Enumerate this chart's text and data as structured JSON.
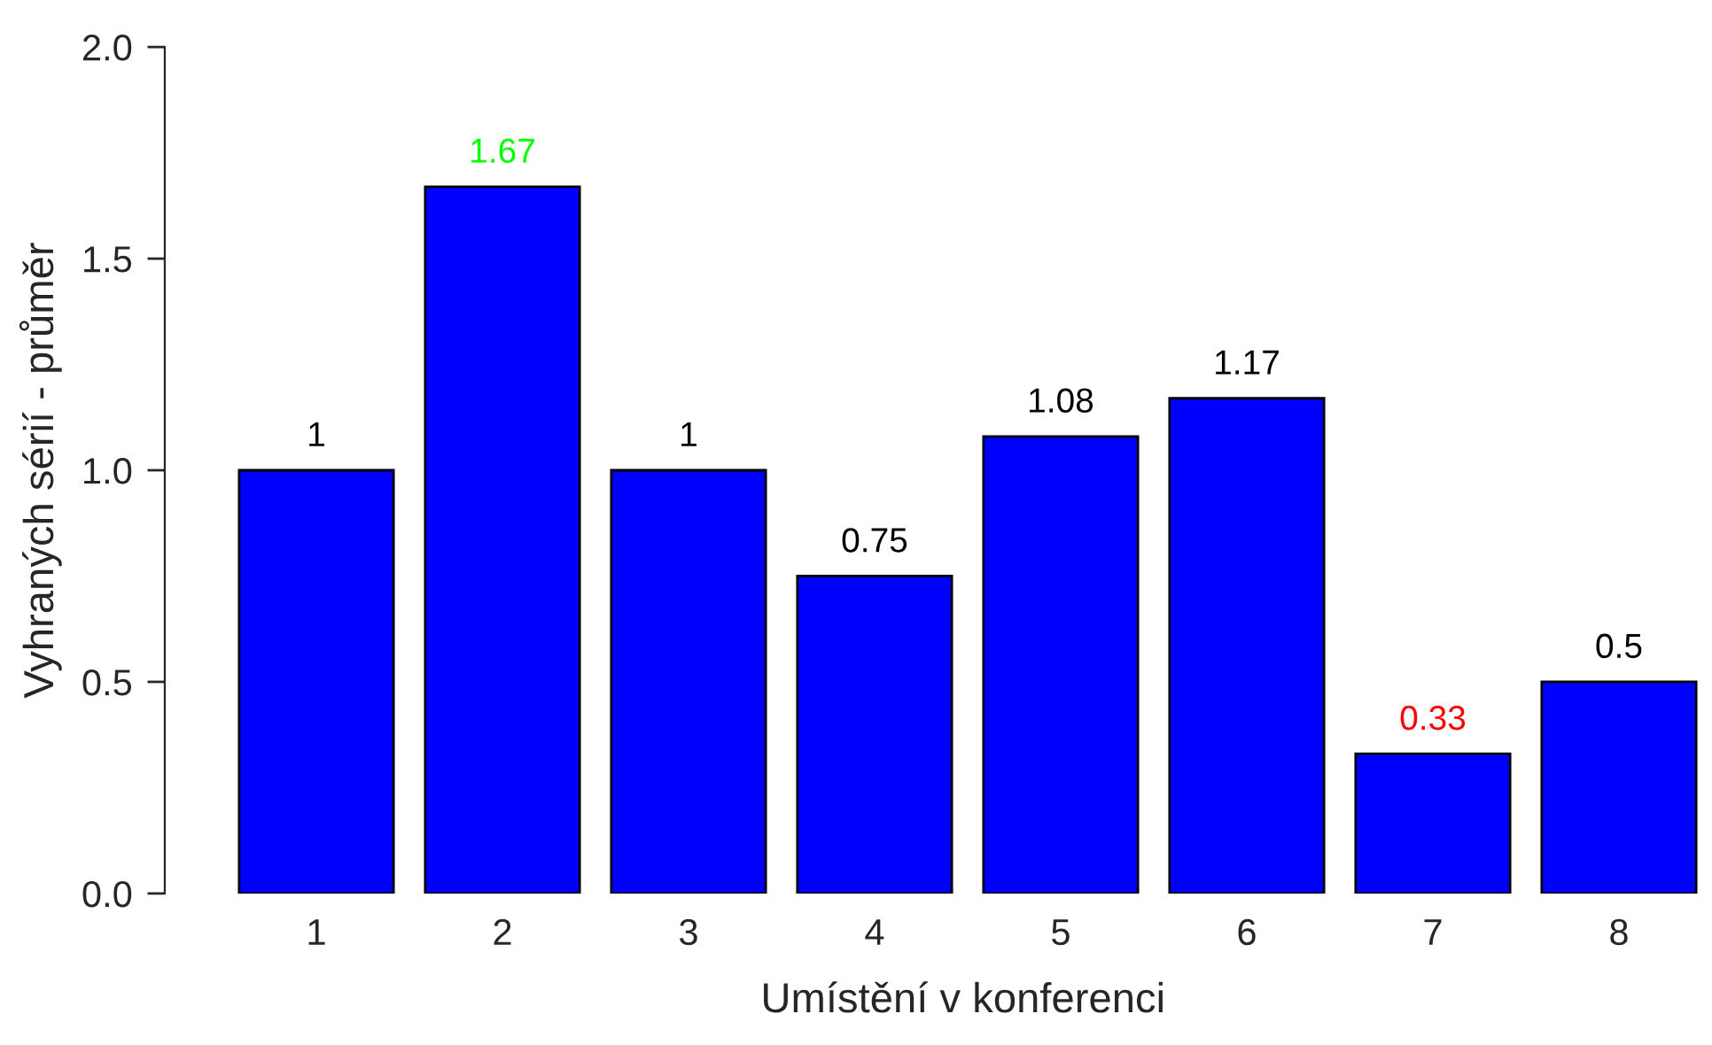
{
  "chart_data": {
    "type": "bar",
    "xlabel": "Umístění v konferenci",
    "ylabel": "Vyhraných sérií - průměr",
    "categories": [
      "1",
      "2",
      "3",
      "4",
      "5",
      "6",
      "7",
      "8"
    ],
    "values": [
      1,
      1.67,
      1,
      0.75,
      1.08,
      1.17,
      0.33,
      0.5
    ],
    "color": "#0000ff",
    "ylim": [
      0,
      2
    ],
    "yticks": [
      {
        "value": 0,
        "label": "0.0"
      },
      {
        "value": 0.5,
        "label": "0.5"
      },
      {
        "value": 1,
        "label": "1.0"
      },
      {
        "value": 1.5,
        "label": "1.5"
      },
      {
        "value": 2,
        "label": "2.0"
      }
    ],
    "data_labels": true,
    "grid": false
  }
}
